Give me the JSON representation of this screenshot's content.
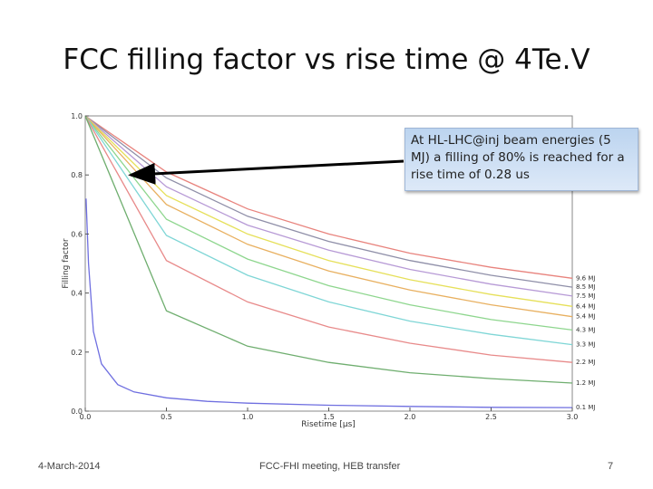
{
  "slide": {
    "title": "FCC filling factor vs rise time @ 4Te.V",
    "callout": "At HL-LHC@inj beam energies (5 MJ) a filling of 80% is reached for a rise time of 0.28 us",
    "footer_date": "4-March-2014",
    "footer_center": "FCC-FHI meeting, HEB transfer",
    "page_number": "7"
  },
  "chart_data": {
    "type": "line",
    "title": "",
    "xlabel": "Risetime [μs]",
    "ylabel": "Filling factor",
    "xlim": [
      0,
      3.0
    ],
    "ylim": [
      0,
      1.0
    ],
    "x_ticks": [
      "0.0",
      "0.5",
      "1.0",
      "1.5",
      "2.0",
      "2.5",
      "3.0"
    ],
    "y_ticks": [
      "0.0",
      "0.2",
      "0.4",
      "0.6",
      "0.8",
      "1.0"
    ],
    "grid": false,
    "legend_placement": "inline labels at right end of each curve",
    "annotation": {
      "arrow_target": [
        0.28,
        0.8
      ]
    },
    "series": [
      {
        "name": "9.6 MJ",
        "color": "#e8837d",
        "x": [
          0,
          0.5,
          1.0,
          1.5,
          2.0,
          2.5,
          3.0
        ],
        "y": [
          1.0,
          0.81,
          0.685,
          0.6,
          0.535,
          0.487,
          0.45
        ]
      },
      {
        "name": "8.5 MJ",
        "color": "#8f8fa8",
        "x": [
          0,
          0.5,
          1.0,
          1.5,
          2.0,
          2.5,
          3.0
        ],
        "y": [
          1.0,
          0.79,
          0.66,
          0.575,
          0.51,
          0.46,
          0.42
        ]
      },
      {
        "name": "7.5 MJ",
        "color": "#b79ad6",
        "x": [
          0,
          0.5,
          1.0,
          1.5,
          2.0,
          2.5,
          3.0
        ],
        "y": [
          1.0,
          0.76,
          0.63,
          0.545,
          0.48,
          0.43,
          0.39
        ]
      },
      {
        "name": "6.4 MJ",
        "color": "#e6e05a",
        "x": [
          0,
          0.5,
          1.0,
          1.5,
          2.0,
          2.5,
          3.0
        ],
        "y": [
          1.0,
          0.73,
          0.6,
          0.51,
          0.445,
          0.395,
          0.355
        ]
      },
      {
        "name": "5.4 MJ",
        "color": "#e8b060",
        "x": [
          0,
          0.5,
          1.0,
          1.5,
          2.0,
          2.5,
          3.0
        ],
        "y": [
          1.0,
          0.7,
          0.565,
          0.475,
          0.41,
          0.36,
          0.32
        ]
      },
      {
        "name": "4.3 MJ",
        "color": "#8ed68e",
        "x": [
          0,
          0.5,
          1.0,
          1.5,
          2.0,
          2.5,
          3.0
        ],
        "y": [
          1.0,
          0.65,
          0.515,
          0.425,
          0.36,
          0.31,
          0.275
        ]
      },
      {
        "name": "3.3 MJ",
        "color": "#7fd6d6",
        "x": [
          0,
          0.5,
          1.0,
          1.5,
          2.0,
          2.5,
          3.0
        ],
        "y": [
          1.0,
          0.595,
          0.46,
          0.37,
          0.305,
          0.26,
          0.225
        ]
      },
      {
        "name": "2.2 MJ",
        "color": "#e88a8a",
        "x": [
          0,
          0.5,
          1.0,
          1.5,
          2.0,
          2.5,
          3.0
        ],
        "y": [
          1.0,
          0.51,
          0.37,
          0.285,
          0.23,
          0.19,
          0.165
        ]
      },
      {
        "name": "1.2 MJ",
        "color": "#6fae6f",
        "x": [
          0,
          0.5,
          1.0,
          1.5,
          2.0,
          2.5,
          3.0
        ],
        "y": [
          1.0,
          0.34,
          0.22,
          0.165,
          0.13,
          0.11,
          0.095
        ]
      },
      {
        "name": "0.1 MJ",
        "color": "#6f6fe0",
        "x": [
          0.005,
          0.02,
          0.05,
          0.1,
          0.2,
          0.3,
          0.5,
          0.75,
          1.0,
          1.5,
          2.0,
          2.5,
          3.0
        ],
        "y": [
          0.72,
          0.5,
          0.27,
          0.16,
          0.09,
          0.065,
          0.045,
          0.033,
          0.027,
          0.02,
          0.016,
          0.013,
          0.012
        ]
      }
    ]
  }
}
